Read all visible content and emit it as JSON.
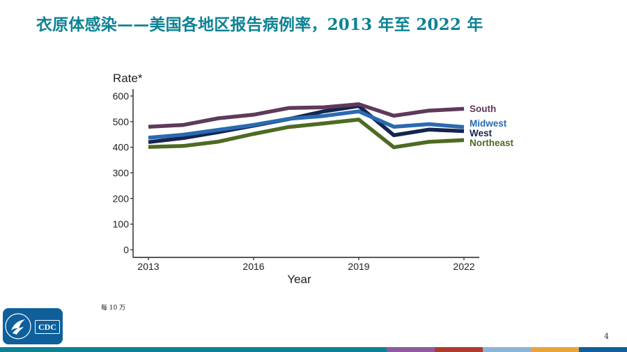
{
  "slide": {
    "title": "衣原体感染——美国各地区报告病例率，2013 年至 2022 年",
    "footnote": "每 10 万",
    "page_number": "4",
    "logo_text": "CDC"
  },
  "colors": {
    "title": "#0d8294",
    "South": "#5e3a5b",
    "Midwest": "#2a6ab1",
    "West": "#14254f",
    "Northeast": "#4d6b22",
    "bar": [
      "#0d8294",
      "#8e5aa0",
      "#b03a2e",
      "#8cb4d8",
      "#e8a43a",
      "#0f5f9b"
    ]
  },
  "chart_data": {
    "type": "line",
    "title": "",
    "xlabel": "Year",
    "ylabel": "Rate*",
    "x": [
      2013,
      2014,
      2015,
      2016,
      2017,
      2018,
      2019,
      2020,
      2021,
      2022
    ],
    "xticks": [
      2013,
      2016,
      2019,
      2022
    ],
    "yticks": [
      0,
      100,
      200,
      300,
      400,
      500,
      600
    ],
    "xlim": [
      2013,
      2022
    ],
    "ylim": [
      0,
      630
    ],
    "legend_position": "right, at line ends",
    "series": [
      {
        "name": "South",
        "values": [
          480,
          487,
          513,
          527,
          553,
          556,
          568,
          523,
          543,
          550
        ]
      },
      {
        "name": "Midwest",
        "values": [
          437,
          449,
          468,
          487,
          511,
          522,
          540,
          480,
          490,
          479
        ]
      },
      {
        "name": "West",
        "values": [
          420,
          436,
          459,
          484,
          510,
          540,
          561,
          447,
          469,
          463
        ]
      },
      {
        "name": "Northeast",
        "values": [
          401,
          405,
          422,
          452,
          479,
          493,
          508,
          400,
          421,
          428
        ]
      }
    ]
  }
}
